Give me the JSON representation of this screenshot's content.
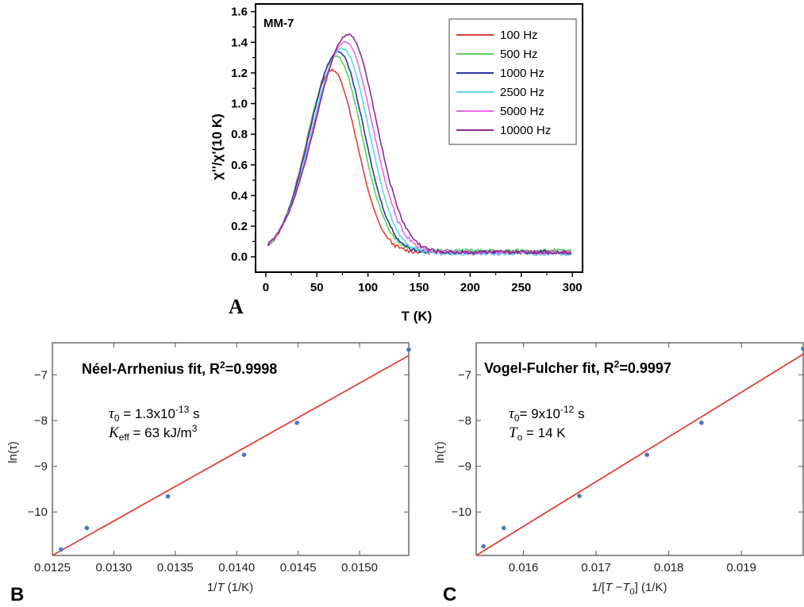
{
  "chart_data": [
    {
      "type": "line",
      "panel_label": "A",
      "sample_label": "MM-7",
      "xlabel": "T (K)",
      "ylabel": "χ''/χ'(10 K)",
      "xlim": [
        -10,
        310
      ],
      "ylim": [
        -0.1,
        1.65
      ],
      "xticks": [
        0,
        50,
        100,
        150,
        200,
        250,
        300
      ],
      "yticks": [
        0.0,
        0.2,
        0.4,
        0.6,
        0.8,
        1.0,
        1.2,
        1.4,
        1.6
      ],
      "legend_position": "top-right",
      "series": [
        {
          "name": "100 Hz",
          "color": "#e0403a",
          "peak_x": 65,
          "peak_y": 1.22,
          "base_y": 0.03
        },
        {
          "name": "500 Hz",
          "color": "#5ad35a",
          "peak_x": 69,
          "peak_y": 1.31,
          "base_y": 0.04
        },
        {
          "name": "1000 Hz",
          "color": "#2d35a8",
          "peak_x": 71,
          "peak_y": 1.34,
          "base_y": 0.03
        },
        {
          "name": "2500 Hz",
          "color": "#5fd8e6",
          "peak_x": 75,
          "peak_y": 1.36,
          "base_y": 0.02
        },
        {
          "name": "5000 Hz",
          "color": "#e66be6",
          "peak_x": 78,
          "peak_y": 1.4,
          "base_y": 0.03
        },
        {
          "name": "10000 Hz",
          "color": "#8c2c8c",
          "peak_x": 81,
          "peak_y": 1.45,
          "base_y": 0.03
        }
      ]
    },
    {
      "type": "scatter",
      "panel_label": "B",
      "title": "Néel-Arrhenius fit, R²=0.9998",
      "params": [
        "τ0 = 1.3x10-13 s",
        "Keff = 63 kJ/m3"
      ],
      "param_labels": {
        "tau_sym": "τ",
        "tau_sub": "0",
        "tau_eq": " = 1.3x10",
        "tau_exp": "-13",
        "tau_unit": " s",
        "k_sym": "K",
        "k_sub": "eff",
        "k_eq": " = 63 kJ/m",
        "k_exp": "3"
      },
      "title_parts": {
        "main": "Néel-Arrhenius fit, R",
        "sup": "2",
        "tail": "=0.9998"
      },
      "xlabel": "1/T  (1/K)",
      "xlabel_parts": {
        "pre": "1/",
        "italic": "T",
        "post": "  (1/K)"
      },
      "ylabel": "ln(τ)",
      "xlim": [
        0.0125,
        0.0154
      ],
      "ylim": [
        -10.95,
        -6.3
      ],
      "xticks": [
        0.0125,
        0.013,
        0.0135,
        0.014,
        0.0145,
        0.015
      ],
      "xtick_labels": [
        "0.0125",
        "0.0130",
        "0.0135",
        "0.0140",
        "0.0145",
        "0.0150"
      ],
      "yticks": [
        -10,
        -9,
        -8,
        -7
      ],
      "ytick_labels": [
        "−10",
        "−9",
        "−8",
        "−7"
      ],
      "x": [
        0.01257,
        0.01278,
        0.01344,
        0.01406,
        0.01449,
        0.0154
      ],
      "y": [
        -10.82,
        -10.35,
        -9.66,
        -8.75,
        -8.05,
        -6.45
      ],
      "fit": {
        "x": [
          0.0125,
          0.0154
        ],
        "y": [
          -10.95,
          -6.58
        ],
        "color": "#e0403a"
      },
      "point_color": "#4a78c2"
    },
    {
      "type": "scatter",
      "panel_label": "C",
      "title": "Vogel-Fulcher fit, R²=0.9997",
      "params": [
        "τ0= 9x10-12 s",
        "To = 14 K"
      ],
      "param_labels": {
        "tau_sym": "τ",
        "tau_sub": "0",
        "tau_eq": "= 9x10",
        "tau_exp": "-12",
        "tau_unit": " s",
        "t_sym": "T",
        "t_sub": "o",
        "t_eq": " = 14 K"
      },
      "title_parts": {
        "main": "Vogel-Fulcher fit, R",
        "sup": "2",
        "tail": "=0.9997"
      },
      "xlabel": "1/[T−T0]  (1/K)",
      "xlabel_parts": {
        "pre": "1/[",
        "t1": "T",
        "mid": " −",
        "t2": "T",
        "sub": "0",
        "post": "]  (1/K)"
      },
      "ylabel": "ln(τ)",
      "xlim": [
        0.01535,
        0.01985
      ],
      "ylim": [
        -10.95,
        -6.3
      ],
      "xticks": [
        0.016,
        0.017,
        0.018,
        0.019
      ],
      "xtick_labels": [
        "0.016",
        "0.017",
        "0.018",
        "0.019"
      ],
      "yticks": [
        -10,
        -9,
        -8,
        -7
      ],
      "ytick_labels": [
        "−10",
        "−9",
        "−8",
        "−7"
      ],
      "x": [
        0.01545,
        0.01573,
        0.01677,
        0.0177,
        0.01845,
        0.01985
      ],
      "y": [
        -10.75,
        -10.35,
        -9.65,
        -8.75,
        -8.05,
        -6.43
      ],
      "fit": {
        "x": [
          0.01535,
          0.01985
        ],
        "y": [
          -10.95,
          -6.55
        ],
        "color": "#e0403a"
      },
      "point_color": "#4a78c2"
    }
  ]
}
